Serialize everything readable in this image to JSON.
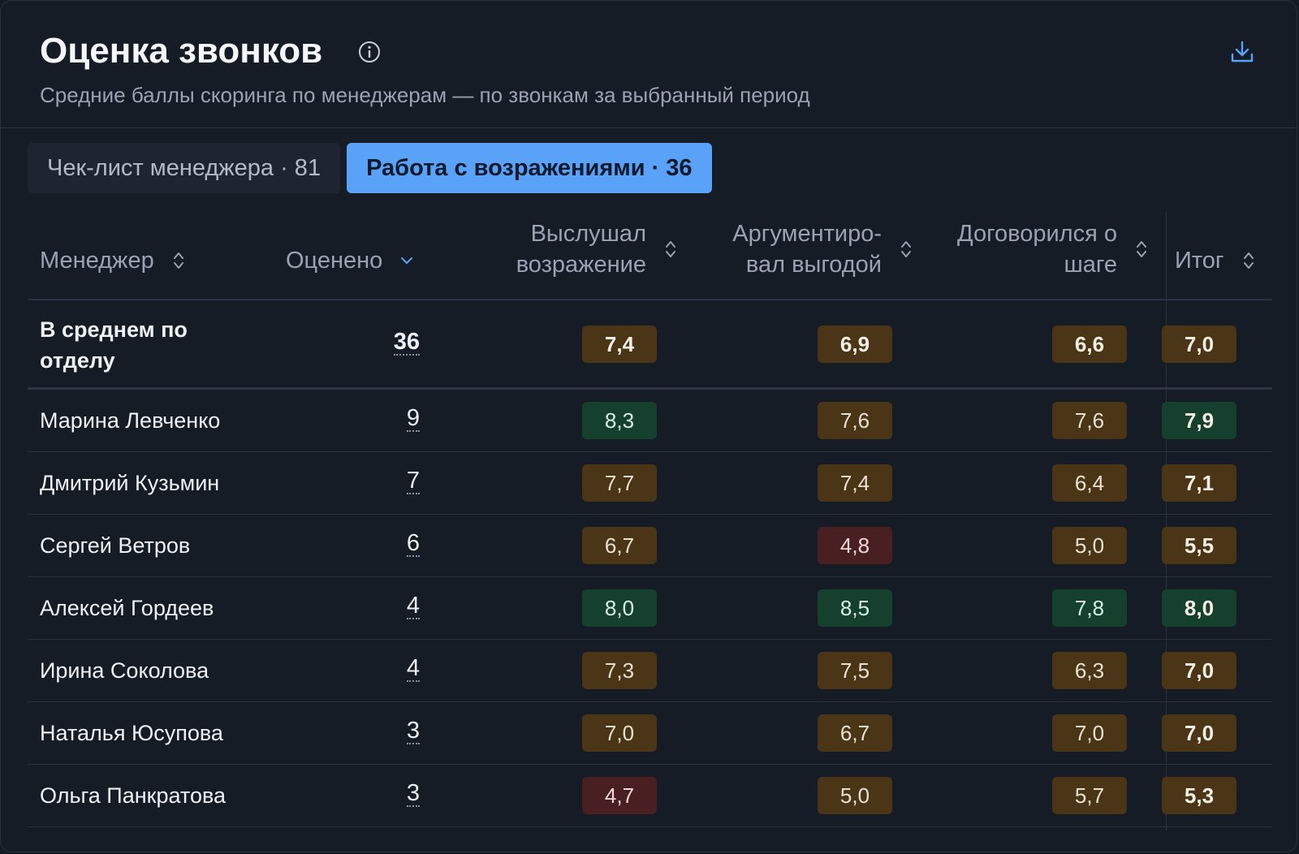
{
  "header": {
    "title": "Оценка звонков",
    "subtitle": "Средние баллы скоринга по менеджерам — по звонкам за выбранный период"
  },
  "tabs": [
    {
      "label": "Чек-лист менеджера · 81",
      "active": false
    },
    {
      "label": "Работа с возражениями · 36",
      "active": true
    }
  ],
  "columns": {
    "manager": "Менеджер",
    "rated": "Оценено",
    "c1_line1": "Выслушал",
    "c1_line2": "возражение",
    "c2_line1": "Аргументиро-",
    "c2_line2": "вал выгодой",
    "c3_line1": "Договорился о",
    "c3_line2": "шаге",
    "total": "Итог"
  },
  "average": {
    "name": "В среднем по отделу",
    "count": "36",
    "scores": [
      "7,4",
      "6,9",
      "6,6"
    ],
    "total": "7,0"
  },
  "rows": [
    {
      "name": "Марина Левченко",
      "count": "9",
      "scores": [
        "8,3",
        "7,6",
        "7,6"
      ],
      "total": "7,9"
    },
    {
      "name": "Дмитрий Кузьмин",
      "count": "7",
      "scores": [
        "7,7",
        "7,4",
        "6,4"
      ],
      "total": "7,1"
    },
    {
      "name": "Сергей Ветров",
      "count": "6",
      "scores": [
        "6,7",
        "4,8",
        "5,0"
      ],
      "total": "5,5"
    },
    {
      "name": "Алексей Гордеев",
      "count": "4",
      "scores": [
        "8,0",
        "8,5",
        "7,8"
      ],
      "total": "8,0"
    },
    {
      "name": "Ирина Соколова",
      "count": "4",
      "scores": [
        "7,3",
        "7,5",
        "6,3"
      ],
      "total": "7,0"
    },
    {
      "name": "Наталья Юсупова",
      "count": "3",
      "scores": [
        "7,0",
        "6,7",
        "7,0"
      ],
      "total": "7,0"
    },
    {
      "name": "Ольга Панкратова",
      "count": "3",
      "scores": [
        "4,7",
        "5,0",
        "5,7"
      ],
      "total": "5,3"
    }
  ],
  "colors": {
    "good": "#16402e",
    "mid": "#4a3516",
    "bad": "#4a1f22",
    "accent": "#5aa2f7"
  }
}
